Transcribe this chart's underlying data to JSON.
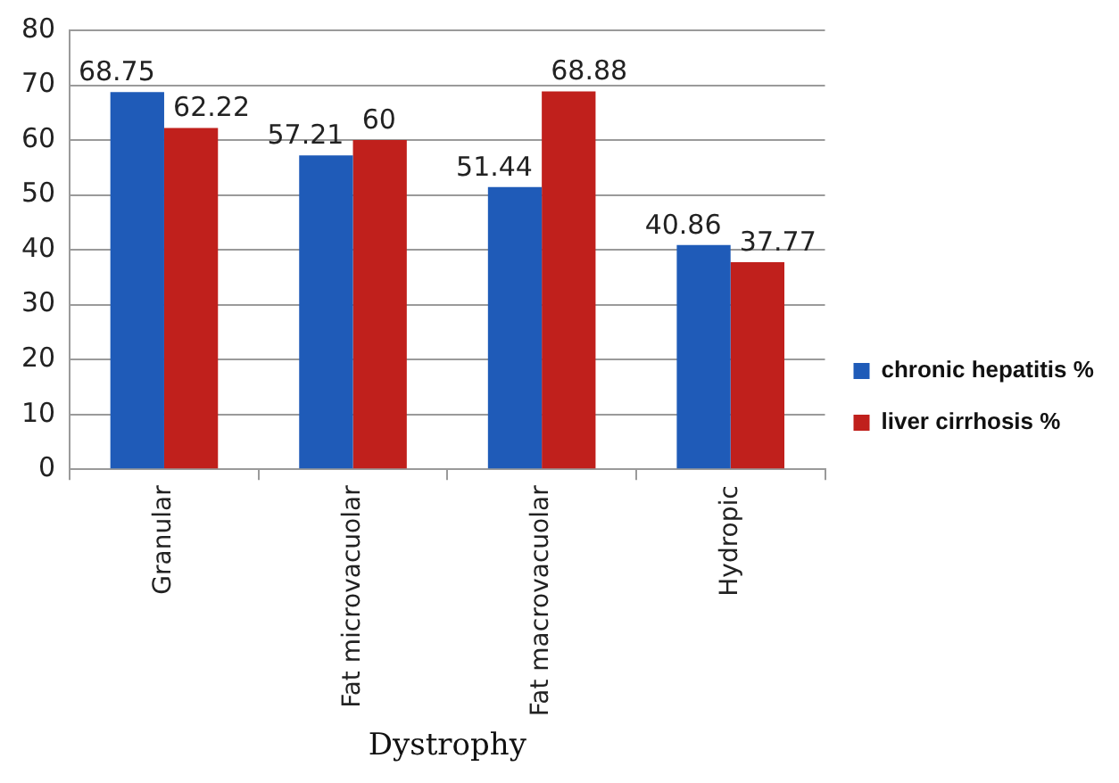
{
  "chart_data": {
    "type": "bar",
    "xlabel": "Dystrophy",
    "categories": [
      "Granular",
      "Fat microvacuolar",
      "Fat macrovacuolar",
      "Hydropic"
    ],
    "series": [
      {
        "name": "chronic hepatitis %",
        "color": "#1f5bb8",
        "values": [
          68.75,
          57.21,
          51.44,
          40.86
        ]
      },
      {
        "name": "liver cirrhosis %",
        "color": "#c0201c",
        "values": [
          62.22,
          60,
          68.88,
          37.77
        ]
      }
    ],
    "ylim": [
      0,
      80
    ],
    "yticks": [
      0,
      10,
      20,
      30,
      40,
      50,
      60,
      70,
      80
    ],
    "grid": "y",
    "legend": "right",
    "data_labels": true
  }
}
